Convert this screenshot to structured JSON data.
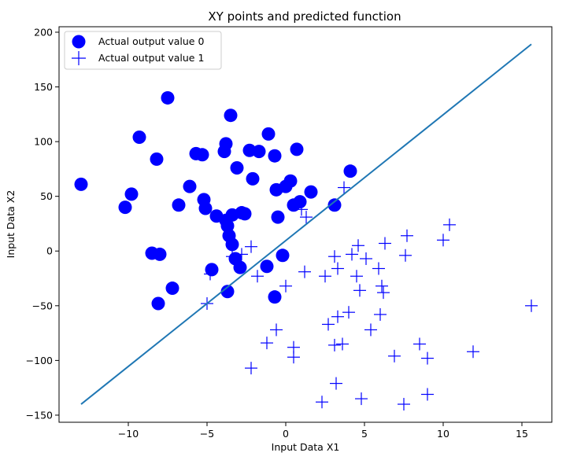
{
  "chart_data": {
    "type": "scatter",
    "title": "XY points and predicted function",
    "xlabel": "Input Data X1",
    "ylabel": "Input Data X2",
    "xlim": [
      -14.4,
      16.9
    ],
    "ylim": [
      -156.5,
      205
    ],
    "xticks": [
      -10,
      -5,
      0,
      5,
      10,
      15
    ],
    "yticks": [
      -150,
      -100,
      -50,
      0,
      50,
      100,
      150,
      200
    ],
    "xtick_labels": [
      "−10",
      "−5",
      "0",
      "5",
      "10",
      "15"
    ],
    "ytick_labels": [
      "−150",
      "−100",
      "−50",
      "0",
      "50",
      "100",
      "150",
      "200"
    ],
    "grid": false,
    "legend_position": "top-left",
    "series": [
      {
        "name": "Actual output value 0",
        "marker": "circle",
        "color": "#0000ff",
        "points": [
          [
            -13.0,
            61
          ],
          [
            -10.2,
            40
          ],
          [
            -9.8,
            52
          ],
          [
            -9.3,
            104
          ],
          [
            -8.5,
            -2
          ],
          [
            -8.2,
            84
          ],
          [
            -8.0,
            -3
          ],
          [
            -8.1,
            -48
          ],
          [
            -7.5,
            140
          ],
          [
            -7.2,
            -34
          ],
          [
            -6.8,
            42
          ],
          [
            -6.1,
            59
          ],
          [
            -5.7,
            89
          ],
          [
            -5.3,
            88
          ],
          [
            -5.2,
            47
          ],
          [
            -5.1,
            39
          ],
          [
            -4.7,
            -17
          ],
          [
            -4.4,
            32
          ],
          [
            -3.9,
            91
          ],
          [
            -3.8,
            98
          ],
          [
            -3.8,
            28
          ],
          [
            -3.7,
            23
          ],
          [
            -3.6,
            14
          ],
          [
            -3.7,
            -37
          ],
          [
            -3.5,
            124
          ],
          [
            -3.4,
            6
          ],
          [
            -3.4,
            33
          ],
          [
            -3.2,
            -7
          ],
          [
            -3.1,
            76
          ],
          [
            -2.9,
            -15
          ],
          [
            -2.8,
            35
          ],
          [
            -2.6,
            34
          ],
          [
            -2.3,
            92
          ],
          [
            -2.1,
            66
          ],
          [
            -1.7,
            91
          ],
          [
            -1.2,
            -14
          ],
          [
            -1.1,
            107
          ],
          [
            -0.7,
            87
          ],
          [
            -0.6,
            56
          ],
          [
            -0.5,
            31
          ],
          [
            -0.7,
            -42
          ],
          [
            -0.2,
            -4
          ],
          [
            0.0,
            59
          ],
          [
            0.3,
            64
          ],
          [
            0.5,
            42
          ],
          [
            0.7,
            93
          ],
          [
            0.9,
            45
          ],
          [
            1.6,
            54
          ],
          [
            3.1,
            42
          ],
          [
            4.1,
            73
          ]
        ]
      },
      {
        "name": "Actual output value 1",
        "marker": "plus",
        "color": "#0000ff",
        "points": [
          [
            -5.0,
            -48
          ],
          [
            -4.8,
            -21
          ],
          [
            -3.4,
            -5
          ],
          [
            -2.8,
            -3
          ],
          [
            -2.2,
            4
          ],
          [
            -2.2,
            -107
          ],
          [
            -1.8,
            -23
          ],
          [
            -1.2,
            -84
          ],
          [
            -0.6,
            -72
          ],
          [
            0.0,
            -32
          ],
          [
            0.5,
            -88
          ],
          [
            0.5,
            -97
          ],
          [
            1.0,
            38
          ],
          [
            1.3,
            31
          ],
          [
            1.2,
            -19
          ],
          [
            2.3,
            -138
          ],
          [
            2.5,
            -23
          ],
          [
            2.7,
            -67
          ],
          [
            3.1,
            -5
          ],
          [
            3.1,
            -86
          ],
          [
            3.2,
            -121
          ],
          [
            3.3,
            -16
          ],
          [
            3.3,
            -60
          ],
          [
            3.6,
            -85
          ],
          [
            3.7,
            58
          ],
          [
            4.0,
            -56
          ],
          [
            4.2,
            -3
          ],
          [
            4.5,
            -23
          ],
          [
            4.6,
            5
          ],
          [
            4.7,
            -36
          ],
          [
            4.8,
            -135
          ],
          [
            5.1,
            -7
          ],
          [
            5.4,
            -72
          ],
          [
            5.9,
            -16
          ],
          [
            6.0,
            -58
          ],
          [
            6.1,
            -32
          ],
          [
            6.2,
            -38
          ],
          [
            6.3,
            7
          ],
          [
            6.9,
            -96
          ],
          [
            7.5,
            -140
          ],
          [
            7.6,
            -4
          ],
          [
            7.7,
            14
          ],
          [
            8.5,
            -85
          ],
          [
            9.0,
            -98
          ],
          [
            9.0,
            -131
          ],
          [
            10.0,
            10
          ],
          [
            10.4,
            24
          ],
          [
            11.9,
            -92
          ],
          [
            15.6,
            -50
          ]
        ]
      }
    ],
    "lines": [
      {
        "name": "",
        "color": "#1f77b4",
        "x": [
          -13.0,
          15.6
        ],
        "y": [
          -140,
          189
        ]
      }
    ]
  },
  "colors": {
    "marker": "#0000ff",
    "line": "#1f77b4",
    "legend_border": "#cccccc"
  }
}
